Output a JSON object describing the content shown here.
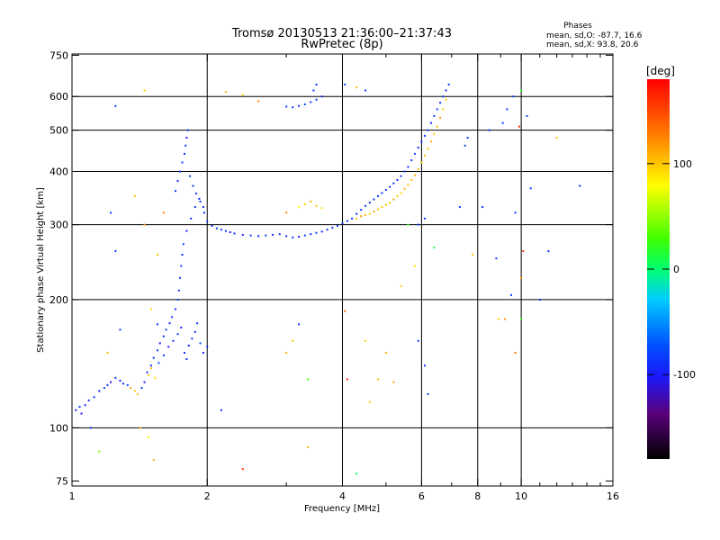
{
  "chart_data": {
    "type": "scatter",
    "title": "Tromsø 20130513 21:36:00–21:37:43",
    "subtitle": "RwPretec (8p)",
    "stats": {
      "heading": "Phases",
      "line1": "mean, sd,O: -87.7, 16.6",
      "line2": "mean, sd,X:  93.8, 20.6"
    },
    "xlabel": "Frequency [MHz]",
    "ylabel": "Stationary phase Virtual Height [km]",
    "x_scale": "log",
    "y_scale": "log",
    "xlim": [
      1,
      16
    ],
    "ylim": [
      73,
      755
    ],
    "x_ticks": [
      1,
      2,
      4,
      6,
      8,
      10,
      16
    ],
    "x_tick_labels": [
      "1",
      "2",
      "4",
      "6",
      "8",
      "10",
      "16"
    ],
    "x_minor_ticks": [
      3,
      5,
      7,
      9,
      11,
      12,
      13,
      14,
      15
    ],
    "y_ticks": [
      75,
      100,
      200,
      300,
      400,
      500,
      600,
      750
    ],
    "y_tick_labels": [
      "75",
      "100",
      "200",
      "300",
      "400",
      "500",
      "600",
      "750"
    ],
    "grid_x": [
      2,
      4,
      6,
      8,
      10
    ],
    "grid_y": [
      100,
      200,
      300,
      400,
      500,
      600
    ],
    "colorbar": {
      "label": "[deg]",
      "range": [
        -180,
        180
      ],
      "ticks": [
        100,
        0,
        -100
      ],
      "tick_labels": [
        "100",
        "0",
        "-100"
      ]
    },
    "point_size": 2,
    "points": [
      [
        1.02,
        110,
        -98
      ],
      [
        1.04,
        112,
        -92
      ],
      [
        1.05,
        108,
        -104
      ],
      [
        1.07,
        113,
        -87
      ],
      [
        1.09,
        116,
        -95
      ],
      [
        1.12,
        118,
        -90
      ],
      [
        1.15,
        122,
        -99
      ],
      [
        1.18,
        124,
        -86
      ],
      [
        1.2,
        126,
        -93
      ],
      [
        1.22,
        128,
        -101
      ],
      [
        1.25,
        131,
        -88
      ],
      [
        1.28,
        129,
        -95
      ],
      [
        1.3,
        127,
        -91
      ],
      [
        1.33,
        126,
        -84
      ],
      [
        1.35,
        124,
        110
      ],
      [
        1.38,
        122,
        96
      ],
      [
        1.4,
        120,
        104
      ],
      [
        1.43,
        124,
        -92
      ],
      [
        1.45,
        128,
        -98
      ],
      [
        1.47,
        135,
        -90
      ],
      [
        1.5,
        140,
        -88
      ],
      [
        1.52,
        146,
        -95
      ],
      [
        1.55,
        152,
        -86
      ],
      [
        1.57,
        158,
        -102
      ],
      [
        1.6,
        164,
        -91
      ],
      [
        1.62,
        170,
        -87
      ],
      [
        1.65,
        176,
        -96
      ],
      [
        1.67,
        182,
        -90
      ],
      [
        1.7,
        190,
        -94
      ],
      [
        1.72,
        200,
        -88
      ],
      [
        1.48,
        133,
        98
      ],
      [
        1.5,
        138,
        105
      ],
      [
        1.53,
        131,
        92
      ],
      [
        1.56,
        142,
        -85
      ],
      [
        1.6,
        148,
        -90
      ],
      [
        1.64,
        155,
        -100
      ],
      [
        1.68,
        160,
        -92
      ],
      [
        1.72,
        166,
        -86
      ],
      [
        1.75,
        172,
        -96
      ],
      [
        1.78,
        150,
        -88
      ],
      [
        1.8,
        145,
        -93
      ],
      [
        1.82,
        156,
        -99
      ],
      [
        1.85,
        162,
        -87
      ],
      [
        1.88,
        168,
        -94
      ],
      [
        1.9,
        176,
        -90
      ],
      [
        1.93,
        158,
        -85
      ],
      [
        1.96,
        150,
        -97
      ],
      [
        2,
        155,
        -91
      ],
      [
        1.73,
        210,
        -90
      ],
      [
        1.74,
        225,
        -95
      ],
      [
        1.75,
        240,
        -88
      ],
      [
        1.76,
        255,
        -93
      ],
      [
        1.77,
        270,
        -86
      ],
      [
        1.8,
        290,
        -98
      ],
      [
        1.84,
        310,
        -92
      ],
      [
        1.88,
        330,
        -87
      ],
      [
        1.92,
        345,
        -95
      ],
      [
        1.96,
        330,
        -91
      ],
      [
        1.7,
        360,
        -89
      ],
      [
        1.72,
        380,
        -96
      ],
      [
        1.74,
        400,
        -90
      ],
      [
        1.76,
        420,
        -86
      ],
      [
        1.78,
        440,
        -94
      ],
      [
        1.79,
        460,
        -88
      ],
      [
        1.8,
        480,
        -99
      ],
      [
        1.81,
        500,
        -92
      ],
      [
        1.83,
        390,
        -85
      ],
      [
        1.86,
        370,
        -95
      ],
      [
        1.89,
        355,
        -90
      ],
      [
        1.93,
        340,
        -87
      ],
      [
        1.97,
        320,
        -93
      ],
      [
        2.0,
        305,
        -89
      ],
      [
        2.05,
        298,
        -96
      ],
      [
        2.1,
        294,
        -88
      ],
      [
        2.15,
        292,
        -92
      ],
      [
        2.2,
        290,
        -86
      ],
      [
        2.25,
        288,
        -97
      ],
      [
        2.3,
        286,
        -90
      ],
      [
        2.4,
        284,
        -93
      ],
      [
        2.5,
        283,
        -87
      ],
      [
        2.6,
        282,
        -95
      ],
      [
        2.7,
        283,
        -89
      ],
      [
        2.8,
        284,
        -92
      ],
      [
        2.9,
        285,
        -86
      ],
      [
        3.0,
        282,
        -94
      ],
      [
        3.1,
        280,
        -90
      ],
      [
        3.2,
        281,
        -97
      ],
      [
        3.3,
        283,
        -88
      ],
      [
        3.4,
        285,
        -91
      ],
      [
        3.5,
        287,
        -85
      ],
      [
        3.6,
        289,
        -93
      ],
      [
        3.7,
        292,
        -90
      ],
      [
        3.8,
        295,
        -96
      ],
      [
        3.9,
        298,
        -87
      ],
      [
        4.0,
        302,
        -92
      ],
      [
        4.1,
        306,
        -89
      ],
      [
        3.2,
        330,
        80
      ],
      [
        3.3,
        335,
        95
      ],
      [
        3.4,
        340,
        110
      ],
      [
        3.5,
        332,
        102
      ],
      [
        3.0,
        320,
        120
      ],
      [
        3.6,
        328,
        90
      ],
      [
        4.2,
        310,
        -88
      ],
      [
        4.3,
        318,
        -94
      ],
      [
        4.4,
        325,
        -90
      ],
      [
        4.5,
        332,
        -86
      ],
      [
        4.6,
        338,
        -95
      ],
      [
        4.7,
        344,
        -91
      ],
      [
        4.8,
        350,
        -87
      ],
      [
        4.9,
        356,
        -96
      ],
      [
        5.0,
        362,
        -89
      ],
      [
        5.1,
        368,
        -93
      ],
      [
        5.2,
        375,
        -85
      ],
      [
        5.3,
        382,
        -97
      ],
      [
        5.4,
        390,
        -90
      ],
      [
        5.5,
        400,
        -88
      ],
      [
        5.6,
        410,
        -94
      ],
      [
        5.7,
        425,
        -91
      ],
      [
        5.8,
        440,
        -86
      ],
      [
        5.9,
        455,
        -95
      ],
      [
        6.0,
        470,
        -89
      ],
      [
        6.1,
        485,
        -92
      ],
      [
        6.2,
        500,
        -87
      ],
      [
        6.3,
        520,
        -96
      ],
      [
        6.4,
        540,
        -90
      ],
      [
        6.5,
        560,
        -88
      ],
      [
        6.6,
        580,
        -93
      ],
      [
        6.7,
        600,
        -86
      ],
      [
        6.8,
        620,
        -95
      ],
      [
        6.9,
        640,
        -90
      ],
      [
        4.3,
        310,
        100
      ],
      [
        4.4,
        314,
        115
      ],
      [
        4.5,
        316,
        105
      ],
      [
        4.6,
        318,
        98
      ],
      [
        4.7,
        322,
        110
      ],
      [
        4.8,
        326,
        104
      ],
      [
        4.9,
        330,
        96
      ],
      [
        5.0,
        334,
        108
      ],
      [
        5.1,
        338,
        102
      ],
      [
        5.2,
        344,
        112
      ],
      [
        5.3,
        350,
        100
      ],
      [
        5.4,
        356,
        95
      ],
      [
        5.5,
        364,
        107
      ],
      [
        5.6,
        372,
        103
      ],
      [
        5.7,
        382,
        99
      ],
      [
        5.8,
        392,
        111
      ],
      [
        5.9,
        405,
        104
      ],
      [
        6.0,
        420,
        97
      ],
      [
        6.1,
        436,
        106
      ],
      [
        6.2,
        452,
        101
      ],
      [
        6.3,
        470,
        109
      ],
      [
        6.4,
        490,
        98
      ],
      [
        6.5,
        510,
        103
      ],
      [
        6.6,
        535,
        112
      ],
      [
        6.7,
        560,
        100
      ],
      [
        6.8,
        590,
        96
      ],
      [
        3.0,
        568,
        -90
      ],
      [
        3.1,
        566,
        -88
      ],
      [
        3.2,
        570,
        -93
      ],
      [
        3.3,
        575,
        -86
      ],
      [
        3.4,
        582,
        -92
      ],
      [
        3.5,
        590,
        -89
      ],
      [
        3.6,
        600,
        -95
      ],
      [
        3.45,
        620,
        -90
      ],
      [
        3.5,
        640,
        -87
      ],
      [
        2.2,
        615,
        110
      ],
      [
        2.4,
        605,
        95
      ],
      [
        2.6,
        585,
        120
      ],
      [
        4.05,
        640,
        -88
      ],
      [
        4.3,
        630,
        105
      ],
      [
        4.5,
        620,
        -90
      ],
      [
        1.25,
        570,
        -92
      ],
      [
        1.45,
        620,
        100
      ],
      [
        1.38,
        350,
        105
      ],
      [
        1.45,
        300,
        120
      ],
      [
        1.6,
        320,
        130
      ],
      [
        1.25,
        260,
        -85
      ],
      [
        1.22,
        320,
        -92
      ],
      [
        1.55,
        255,
        100
      ],
      [
        1.5,
        190,
        95
      ],
      [
        1.55,
        175,
        -90
      ],
      [
        1.2,
        150,
        100
      ],
      [
        1.28,
        170,
        -88
      ],
      [
        1.42,
        100,
        110
      ],
      [
        1.48,
        95,
        85
      ],
      [
        1.1,
        100,
        -92
      ],
      [
        1.15,
        88,
        40
      ],
      [
        1.52,
        84,
        110
      ],
      [
        2.15,
        110,
        -93
      ],
      [
        2.4,
        80,
        160
      ],
      [
        3.35,
        90,
        110
      ],
      [
        3.35,
        130,
        30
      ],
      [
        3.2,
        175,
        -95
      ],
      [
        3.1,
        160,
        100
      ],
      [
        3.0,
        150,
        110
      ],
      [
        4.05,
        188,
        140
      ],
      [
        4.1,
        130,
        160
      ],
      [
        4.3,
        78,
        0
      ],
      [
        4.5,
        160,
        95
      ],
      [
        4.6,
        115,
        100
      ],
      [
        4.8,
        130,
        105
      ],
      [
        5.0,
        150,
        110
      ],
      [
        5.2,
        128,
        115
      ],
      [
        5.9,
        160,
        -90
      ],
      [
        6.1,
        140,
        -95
      ],
      [
        6.2,
        120,
        -88
      ],
      [
        5.4,
        215,
        100
      ],
      [
        5.8,
        240,
        90
      ],
      [
        6.4,
        265,
        10
      ],
      [
        7.3,
        330,
        -90
      ],
      [
        7.5,
        460,
        -85
      ],
      [
        8.2,
        330,
        -92
      ],
      [
        8.5,
        500,
        -95
      ],
      [
        9.1,
        520,
        -88
      ],
      [
        9.3,
        560,
        -90
      ],
      [
        9.6,
        600,
        -86
      ],
      [
        9.9,
        510,
        160
      ],
      [
        10.0,
        620,
        20
      ],
      [
        10.3,
        540,
        -90
      ],
      [
        9.7,
        320,
        -92
      ],
      [
        10.1,
        260,
        160
      ],
      [
        10.5,
        365,
        -85
      ],
      [
        11.0,
        200,
        -93
      ],
      [
        11.5,
        260,
        -90
      ],
      [
        12.0,
        480,
        105
      ],
      [
        13.5,
        370,
        -95
      ],
      [
        9.5,
        205,
        -88
      ],
      [
        9.7,
        150,
        130
      ],
      [
        10.0,
        180,
        20
      ],
      [
        9.2,
        180,
        115
      ],
      [
        8.9,
        180,
        100
      ],
      [
        10.0,
        225,
        120
      ],
      [
        8.8,
        250,
        -90
      ],
      [
        7.8,
        255,
        100
      ],
      [
        7.6,
        480,
        -92
      ],
      [
        5.6,
        300,
        20
      ],
      [
        5.9,
        300,
        -90
      ],
      [
        6.1,
        310,
        -88
      ]
    ]
  }
}
